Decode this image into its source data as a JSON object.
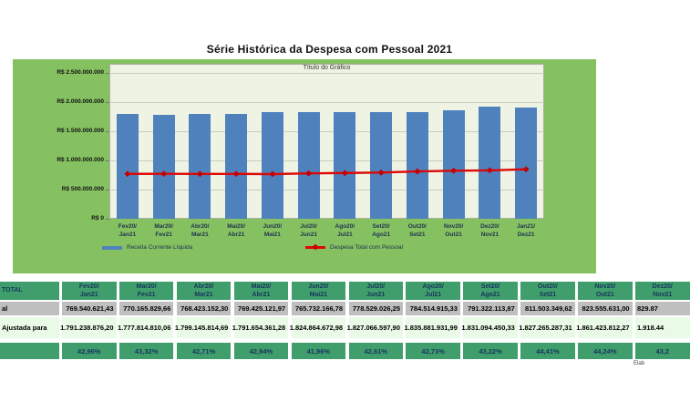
{
  "page": {
    "title": "Série Histórica da Despesa com Pessoal 2021",
    "footnote": "Elab"
  },
  "chart_data": {
    "type": "bar",
    "title": "Título do Gráfico",
    "categories": [
      "Fev20/Jan21",
      "Mar20/Fev21",
      "Abr20/Mar21",
      "Mai20/Abr21",
      "Jun20/Mai21",
      "Jul20/Jun21",
      "Ago20/Jul21",
      "Set20/Ago21",
      "Out20/Set21",
      "Nov20/Out21",
      "Dez20/Nov21",
      "Jan21/Dez21"
    ],
    "series": [
      {
        "name": "Receita Corrente Líquida",
        "type": "bar",
        "color": "#4f81bd",
        "values": [
          1791238876.2,
          1777814810.06,
          1799145814.69,
          1791654361.28,
          1824864672.98,
          1827066597.9,
          1835881931.99,
          1831094450.33,
          1827265287.31,
          1861423812.27,
          1918440000,
          1910000000
        ]
      },
      {
        "name": "Despesa Total com Pessoal",
        "type": "line",
        "color": "#dd0806",
        "marker_color": "#c00000",
        "values": [
          769540621.43,
          770165829.66,
          768423152.3,
          769425121.97,
          765732166.78,
          778529026.25,
          784514915.33,
          791322113.87,
          811503349.62,
          823555631.0,
          829870000,
          848000000
        ]
      }
    ],
    "ylim": [
      0,
      2500000000
    ],
    "y_tick_step": 500000000,
    "y_tick_labels": [
      "R$ 0",
      "R$ 500.000.000",
      "R$ 1.000.000.000",
      "R$ 1.500.000.000",
      "R$ 2.000.000.000",
      "R$ 2.500.000.000"
    ],
    "grid": true,
    "legend_position": "bottom",
    "xlabel": "",
    "ylabel": ""
  },
  "table": {
    "corner_header": "TOTAL",
    "row_labels": {
      "despesa": "al",
      "rcl": "Ajustada para",
      "pct": ""
    },
    "columns": [
      {
        "period": "Fev20/Jan21",
        "despesa": "769.540.621,43",
        "rcl": "1.791.238.876,20",
        "pct": "42,96%"
      },
      {
        "period": "Mar20/Fev21",
        "despesa": "770.165.829,66",
        "rcl": "1.777.814.810,06",
        "pct": "43,32%"
      },
      {
        "period": "Abr20/Mar21",
        "despesa": "768.423.152,30",
        "rcl": "1.799.145.814,69",
        "pct": "42,71%"
      },
      {
        "period": "Mai20/Abr21",
        "despesa": "769.425.121,97",
        "rcl": "1.791.654.361,28",
        "pct": "42,94%"
      },
      {
        "period": "Jun20/Mai21",
        "despesa": "765.732.166,78",
        "rcl": "1.824.864.672,98",
        "pct": "41,96%"
      },
      {
        "period": "Jul20/Jun21",
        "despesa": "778.529.026,25",
        "rcl": "1.827.066.597,90",
        "pct": "42,61%"
      },
      {
        "period": "Ago20/Jul21",
        "despesa": "784.514.915,33",
        "rcl": "1.835.881.931,99",
        "pct": "42,73%"
      },
      {
        "period": "Set20/Ago21",
        "despesa": "791.322.113,87",
        "rcl": "1.831.094.450,33",
        "pct": "43,22%"
      },
      {
        "period": "Out20/Set21",
        "despesa": "811.503.349,62",
        "rcl": "1.827.265.287,31",
        "pct": "44,41%"
      },
      {
        "period": "Nov20/Out21",
        "despesa": "823.555.631,00",
        "rcl": "1.861.423.812,27",
        "pct": "44,24%"
      },
      {
        "period": "Dez20/Nov21",
        "despesa": "829.87",
        "rcl": "1.918.44",
        "pct": "43,2",
        "clipped": true
      }
    ]
  }
}
